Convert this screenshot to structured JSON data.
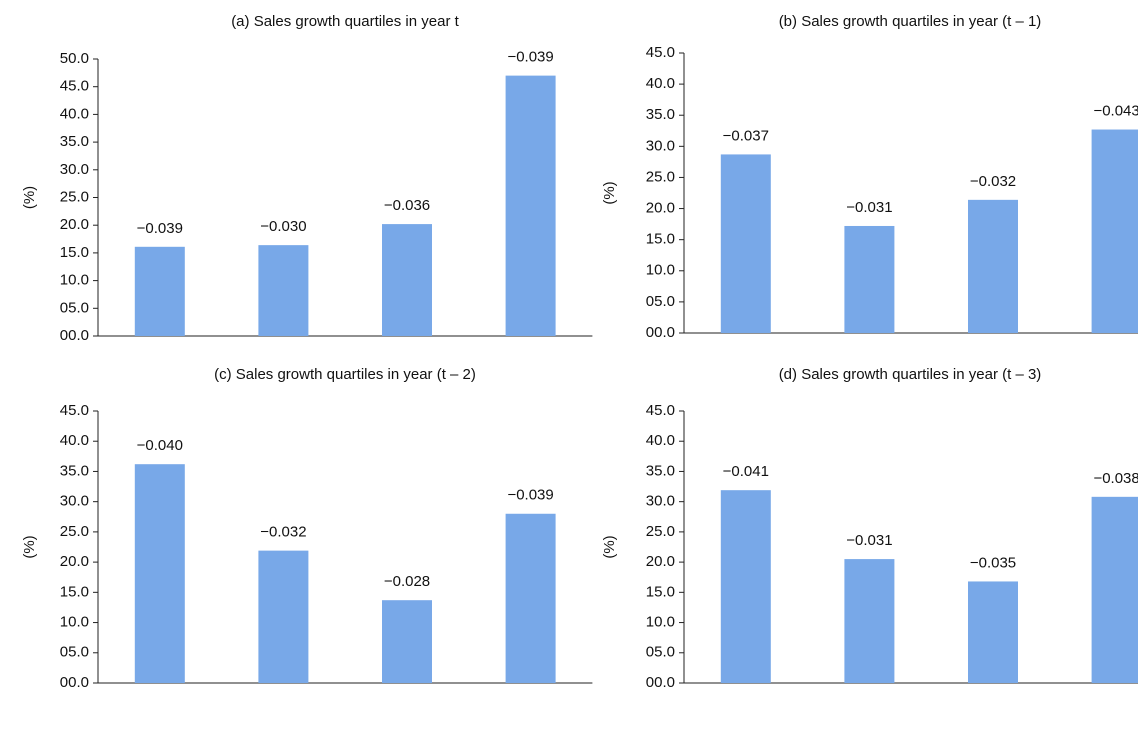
{
  "chart_data": [
    {
      "type": "bar",
      "title": "(a) Sales growth quartiles in year t",
      "ylabel": "(%)",
      "color": "#78a8e8",
      "categories": [
        null,
        null,
        null,
        null
      ],
      "values": [
        16.1,
        16.4,
        20.2,
        47.0
      ],
      "annotations": [
        "−0.039",
        "−0.030",
        "−0.036",
        "−0.039"
      ],
      "ylim": [
        0,
        50
      ],
      "yticks": [
        {
          "value": 0,
          "label": "00.0"
        },
        {
          "value": 5,
          "label": "05.0"
        },
        {
          "value": 10,
          "label": "10.0"
        },
        {
          "value": 15,
          "label": "15.0"
        },
        {
          "value": 20,
          "label": "20.0"
        },
        {
          "value": 25,
          "label": "25.0"
        },
        {
          "value": 30,
          "label": "30.0"
        },
        {
          "value": 35,
          "label": "35.0"
        },
        {
          "value": 40,
          "label": "40.0"
        },
        {
          "value": 45,
          "label": "45.0"
        },
        {
          "value": 50,
          "label": "50.0"
        }
      ]
    },
    {
      "type": "bar",
      "title": "(b) Sales growth quartiles in year (t – 1)",
      "ylabel": "(%)",
      "color": "#78a8e8",
      "categories": [
        null,
        null,
        null,
        null
      ],
      "values": [
        28.7,
        17.2,
        21.4,
        32.7
      ],
      "annotations": [
        "−0.037",
        "−0.031",
        "−0.032",
        "−0.043"
      ],
      "ylim": [
        0,
        45
      ],
      "yticks": [
        {
          "value": 0,
          "label": "00.0"
        },
        {
          "value": 5,
          "label": "05.0"
        },
        {
          "value": 10,
          "label": "10.0"
        },
        {
          "value": 15,
          "label": "15.0"
        },
        {
          "value": 20,
          "label": "20.0"
        },
        {
          "value": 25,
          "label": "25.0"
        },
        {
          "value": 30,
          "label": "30.0"
        },
        {
          "value": 35,
          "label": "35.0"
        },
        {
          "value": 40,
          "label": "40.0"
        },
        {
          "value": 45,
          "label": "45.0"
        }
      ]
    },
    {
      "type": "bar",
      "title": "(c) Sales growth quartiles in year (t – 2)",
      "ylabel": "(%)",
      "color": "#78a8e8",
      "categories": [
        null,
        null,
        null,
        null
      ],
      "values": [
        36.2,
        21.9,
        13.7,
        28.0
      ],
      "annotations": [
        "−0.040",
        "−0.032",
        "−0.028",
        "−0.039"
      ],
      "ylim": [
        0,
        45
      ],
      "yticks": [
        {
          "value": 0,
          "label": "00.0"
        },
        {
          "value": 5,
          "label": "05.0"
        },
        {
          "value": 10,
          "label": "10.0"
        },
        {
          "value": 15,
          "label": "15.0"
        },
        {
          "value": 20,
          "label": "20.0"
        },
        {
          "value": 25,
          "label": "25.0"
        },
        {
          "value": 30,
          "label": "30.0"
        },
        {
          "value": 35,
          "label": "35.0"
        },
        {
          "value": 40,
          "label": "40.0"
        },
        {
          "value": 45,
          "label": "45.0"
        }
      ]
    },
    {
      "type": "bar",
      "title": "(d) Sales growth quartiles in year (t – 3)",
      "ylabel": "(%)",
      "color": "#78a8e8",
      "categories": [
        null,
        null,
        null,
        null
      ],
      "values": [
        31.9,
        20.5,
        16.8,
        30.8
      ],
      "annotations": [
        "−0.041",
        "−0.031",
        "−0.035",
        "−0.038"
      ],
      "ylim": [
        0,
        45
      ],
      "yticks": [
        {
          "value": 0,
          "label": "00.0"
        },
        {
          "value": 5,
          "label": "05.0"
        },
        {
          "value": 10,
          "label": "10.0"
        },
        {
          "value": 15,
          "label": "15.0"
        },
        {
          "value": 20,
          "label": "20.0"
        },
        {
          "value": 25,
          "label": "25.0"
        },
        {
          "value": 30,
          "label": "30.0"
        },
        {
          "value": 35,
          "label": "35.0"
        },
        {
          "value": 40,
          "label": "40.0"
        },
        {
          "value": 45,
          "label": "45.0"
        }
      ]
    }
  ]
}
